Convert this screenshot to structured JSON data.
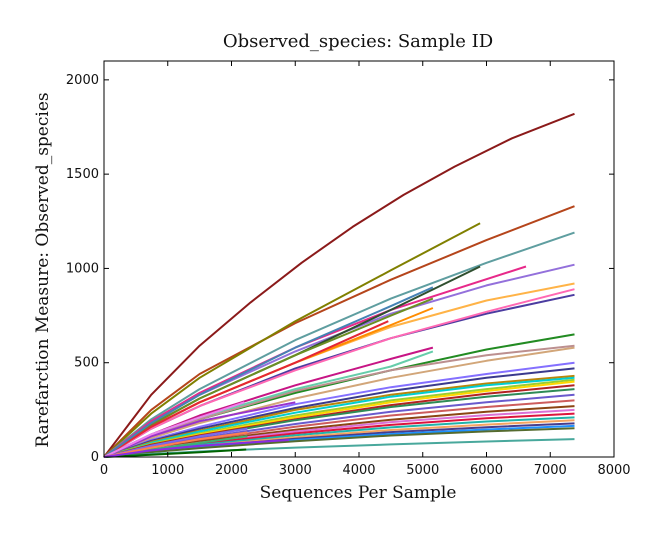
{
  "chart_data": {
    "type": "line",
    "title": "Observed_species: Sample ID",
    "xlabel": "Sequences Per Sample",
    "ylabel": "Rarefarction Measure: Observed_species",
    "xlim": [
      0,
      8000
    ],
    "ylim": [
      0,
      2100
    ],
    "xticks": [
      0,
      1000,
      2000,
      3000,
      4000,
      5000,
      6000,
      7000,
      8000
    ],
    "yticks": [
      0,
      500,
      1000,
      1500,
      2000
    ],
    "grid": false,
    "legend": "none",
    "series": [
      {
        "color": "#8b1a1a",
        "x": [
          0,
          740,
          1500,
          2300,
          3100,
          3900,
          4700,
          5500,
          6400,
          7380
        ],
        "y": [
          0,
          330,
          590,
          820,
          1030,
          1220,
          1390,
          1540,
          1690,
          1820
        ]
      },
      {
        "color": "#b5451b",
        "x": [
          0,
          740,
          1500,
          3000,
          4500,
          6000,
          7380
        ],
        "y": [
          0,
          250,
          440,
          710,
          940,
          1150,
          1330
        ]
      },
      {
        "color": "#808000",
        "x": [
          0,
          740,
          1500,
          3000,
          4500,
          5900
        ],
        "y": [
          0,
          230,
          420,
          720,
          990,
          1240
        ]
      },
      {
        "color": "#5f9ea0",
        "x": [
          0,
          740,
          1500,
          3000,
          4500,
          6000,
          7380
        ],
        "y": [
          0,
          200,
          360,
          620,
          840,
          1030,
          1190
        ]
      },
      {
        "color": "#e7298a",
        "x": [
          0,
          740,
          1500,
          3000,
          4500,
          6620
        ],
        "y": [
          0,
          190,
          340,
          580,
          780,
          1010
        ]
      },
      {
        "color": "#9370db",
        "x": [
          0,
          740,
          1500,
          3000,
          4500,
          6000,
          7380
        ],
        "y": [
          0,
          180,
          330,
          560,
          760,
          910,
          1020
        ]
      },
      {
        "color": "#2f4f2f",
        "x": [
          0,
          740,
          1500,
          3000,
          4500,
          5900
        ],
        "y": [
          0,
          170,
          310,
          540,
          780,
          1010
        ]
      },
      {
        "color": "#ffb347",
        "x": [
          0,
          740,
          1500,
          3000,
          4500,
          6000,
          7380
        ],
        "y": [
          0,
          160,
          290,
          500,
          690,
          830,
          920
        ]
      },
      {
        "color": "#4b3ca0",
        "x": [
          0,
          740,
          1500,
          3000,
          4500,
          6000,
          7380
        ],
        "y": [
          0,
          150,
          270,
          470,
          630,
          760,
          860
        ]
      },
      {
        "color": "#ff69b4",
        "x": [
          0,
          740,
          1500,
          3000,
          4500,
          6000,
          7380
        ],
        "y": [
          0,
          150,
          270,
          460,
          630,
          770,
          890
        ]
      },
      {
        "color": "#ff8c00",
        "x": [
          0,
          740,
          1500,
          3000,
          4500,
          5160
        ],
        "y": [
          0,
          160,
          290,
          500,
          700,
          790
        ]
      },
      {
        "color": "#6b8e23",
        "x": [
          0,
          740,
          1500,
          3000,
          4500,
          5160
        ],
        "y": [
          0,
          170,
          310,
          540,
          750,
          840
        ]
      },
      {
        "color": "#e32636",
        "x": [
          0,
          740,
          1500,
          3000,
          4460
        ],
        "y": [
          0,
          160,
          290,
          500,
          720
        ]
      },
      {
        "color": "#4682b4",
        "x": [
          0,
          740,
          1500,
          3000,
          4500,
          5160
        ],
        "y": [
          0,
          180,
          330,
          580,
          800,
          900
        ]
      },
      {
        "color": "#228b22",
        "x": [
          0,
          740,
          1500,
          3000,
          4500,
          6000,
          7380
        ],
        "y": [
          0,
          110,
          200,
          340,
          460,
          570,
          650
        ]
      },
      {
        "color": "#d2a679",
        "x": [
          0,
          740,
          1500,
          3000,
          4500,
          6000,
          7380
        ],
        "y": [
          0,
          100,
          180,
          310,
          420,
          510,
          580
        ]
      },
      {
        "color": "#bc8f8f",
        "x": [
          0,
          740,
          1500,
          3000,
          4500,
          6000,
          7380
        ],
        "y": [
          0,
          110,
          200,
          350,
          460,
          540,
          590
        ]
      },
      {
        "color": "#c71585",
        "x": [
          0,
          740,
          1500,
          3000,
          4500,
          5160
        ],
        "y": [
          0,
          120,
          220,
          380,
          520,
          580
        ]
      },
      {
        "color": "#66cdaa",
        "x": [
          0,
          740,
          1500,
          3000,
          4500,
          5160
        ],
        "y": [
          0,
          120,
          210,
          360,
          480,
          560
        ]
      },
      {
        "color": "#8470ff",
        "x": [
          0,
          740,
          1500,
          3000,
          4500,
          6000,
          7380
        ],
        "y": [
          0,
          90,
          160,
          280,
          370,
          440,
          500
        ]
      },
      {
        "color": "#3a3a8c",
        "x": [
          0,
          740,
          1500,
          3000,
          4500,
          6000,
          7380
        ],
        "y": [
          0,
          85,
          150,
          260,
          350,
          420,
          470
        ]
      },
      {
        "color": "#b8860b",
        "x": [
          0,
          740,
          1500,
          3000,
          4500,
          6000,
          7380
        ],
        "y": [
          0,
          80,
          140,
          250,
          330,
          390,
          430
        ]
      },
      {
        "color": "#00ced1",
        "x": [
          0,
          740,
          1500,
          3000,
          4500,
          6000,
          7380
        ],
        "y": [
          0,
          75,
          135,
          235,
          320,
          380,
          420
        ]
      },
      {
        "color": "#9acd32",
        "x": [
          0,
          740,
          1500,
          3000,
          4500,
          6000,
          7380
        ],
        "y": [
          0,
          70,
          125,
          220,
          300,
          360,
          410
        ]
      },
      {
        "color": "#ffd700",
        "x": [
          0,
          740,
          1500,
          3000,
          4500,
          6000,
          7380
        ],
        "y": [
          0,
          65,
          120,
          210,
          290,
          350,
          400
        ]
      },
      {
        "color": "#b22222",
        "x": [
          0,
          740,
          1500,
          3000,
          4500,
          6000,
          7380
        ],
        "y": [
          0,
          65,
          115,
          200,
          275,
          335,
          380
        ]
      },
      {
        "color": "#2e8b57",
        "x": [
          0,
          740,
          1500,
          3000,
          4500,
          6000,
          7380
        ],
        "y": [
          0,
          60,
          110,
          195,
          265,
          320,
          360
        ]
      },
      {
        "color": "#6a5acd",
        "x": [
          0,
          740,
          1500,
          3000,
          4500,
          6000,
          7380
        ],
        "y": [
          0,
          55,
          100,
          175,
          240,
          290,
          330
        ]
      },
      {
        "color": "#cd5c5c",
        "x": [
          0,
          740,
          1500,
          3000,
          4500,
          6000,
          7380
        ],
        "y": [
          0,
          50,
          90,
          160,
          220,
          265,
          300
        ]
      },
      {
        "color": "#8b4513",
        "x": [
          0,
          740,
          1500,
          3000,
          4500,
          6000,
          7380
        ],
        "y": [
          0,
          45,
          82,
          145,
          198,
          240,
          270
        ]
      },
      {
        "color": "#da70d6",
        "x": [
          0,
          740,
          1500,
          3000,
          4500,
          6000,
          7380
        ],
        "y": [
          0,
          42,
          76,
          135,
          185,
          222,
          250
        ]
      },
      {
        "color": "#dc143c",
        "x": [
          0,
          740,
          1500,
          3000,
          4500,
          6000,
          7380
        ],
        "y": [
          0,
          38,
          70,
          125,
          170,
          205,
          230
        ]
      },
      {
        "color": "#20b2aa",
        "x": [
          0,
          740,
          1500,
          3000,
          4500,
          6000,
          7380
        ],
        "y": [
          0,
          35,
          64,
          115,
          157,
          188,
          210
        ]
      },
      {
        "color": "#f4a460",
        "x": [
          0,
          740,
          1500,
          3000,
          4500,
          6000,
          7380
        ],
        "y": [
          0,
          32,
          58,
          105,
          143,
          172,
          195
        ]
      },
      {
        "color": "#483d8b",
        "x": [
          0,
          740,
          1500,
          3000,
          4500,
          6000,
          7380
        ],
        "y": [
          0,
          30,
          54,
          97,
          132,
          158,
          178
        ]
      },
      {
        "color": "#1e90ff",
        "x": [
          0,
          740,
          1500,
          3000,
          4500,
          6000,
          7380
        ],
        "y": [
          0,
          28,
          50,
          90,
          122,
          146,
          165
        ]
      },
      {
        "color": "#556b2f",
        "x": [
          0,
          740,
          1500,
          3000,
          4500,
          6000,
          7380
        ],
        "y": [
          0,
          26,
          47,
          84,
          114,
          136,
          152
        ]
      },
      {
        "color": "#48a89c",
        "x": [
          0,
          740,
          1500,
          3000,
          4500,
          6000,
          7380
        ],
        "y": [
          0,
          16,
          29,
          50,
          67,
          82,
          95
        ]
      },
      {
        "color": "#9932cc",
        "x": [
          0,
          740,
          1500,
          3000
        ],
        "y": [
          0,
          110,
          190,
          290
        ]
      },
      {
        "color": "#ee82ee",
        "x": [
          0,
          740,
          1500,
          2200
        ],
        "y": [
          0,
          120,
          210,
          290
        ]
      },
      {
        "color": "#3cb371",
        "x": [
          0,
          740,
          1500,
          2250
        ],
        "y": [
          0,
          40,
          75,
          110
        ]
      },
      {
        "color": "#006400",
        "x": [
          0,
          740,
          1500,
          2230
        ],
        "y": [
          0,
          12,
          25,
          40
        ]
      },
      {
        "color": "#7b68ee",
        "x": [
          0,
          740,
          1500,
          2250
        ],
        "y": [
          0,
          60,
          110,
          150
        ]
      },
      {
        "color": "#ff7f50",
        "x": [
          0,
          740,
          1500,
          2250
        ],
        "y": [
          0,
          50,
          95,
          130
        ]
      },
      {
        "color": "#8a2be2",
        "x": [
          0,
          740,
          1500,
          2900
        ],
        "y": [
          0,
          35,
          60,
          90
        ]
      }
    ]
  }
}
